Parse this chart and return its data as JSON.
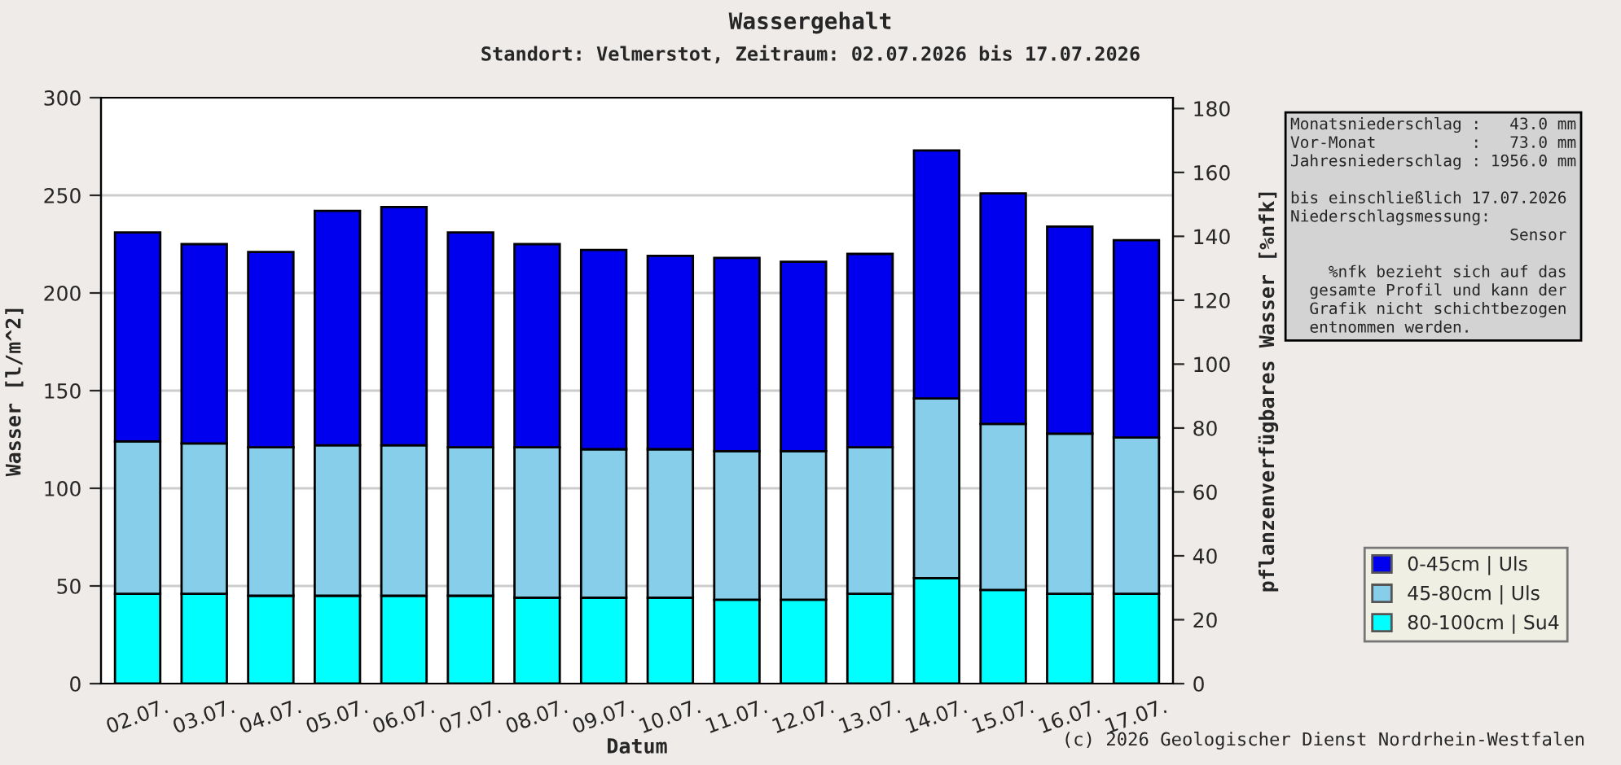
{
  "chart_data": {
    "type": "bar",
    "stacked": true,
    "title": "Wassergehalt",
    "subtitle": "Standort: Velmerstot, Zeitraum: 02.07.2026 bis 17.07.2026",
    "xlabel": "Datum",
    "ylabel": "Wasser [l/m^2]",
    "y2label": "pflanzenverfügbares Wasser [%nfk]",
    "categories": [
      "02.07.",
      "03.07.",
      "04.07.",
      "05.07.",
      "06.07.",
      "07.07.",
      "08.07.",
      "09.07.",
      "10.07.",
      "11.07.",
      "12.07.",
      "13.07.",
      "14.07.",
      "15.07.",
      "16.07.",
      "17.07."
    ],
    "series": [
      {
        "name": "80-100cm | Su4",
        "color": "#00ffff",
        "values": [
          46,
          46,
          45,
          45,
          45,
          45,
          44,
          44,
          44,
          43,
          43,
          46,
          54,
          48,
          46,
          46
        ]
      },
      {
        "name": "45-80cm | Uls",
        "color": "#87ceeb",
        "values": [
          78,
          77,
          76,
          77,
          77,
          76,
          77,
          76,
          76,
          76,
          76,
          75,
          92,
          85,
          82,
          80
        ]
      },
      {
        "name": "0-45cm | Uls",
        "color": "#0000ee",
        "values": [
          107,
          102,
          100,
          120,
          122,
          110,
          104,
          102,
          99,
          99,
          97,
          99,
          127,
          118,
          106,
          101
        ]
      }
    ],
    "ylim": [
      0,
      300
    ],
    "yticks": [
      0,
      50,
      100,
      150,
      200,
      250,
      300
    ],
    "y2lim": [
      0,
      183.4
    ],
    "y2ticks": [
      0,
      20,
      40,
      60,
      80,
      100,
      120,
      140,
      160,
      180
    ],
    "grid": "y",
    "legend": "bottom right",
    "annotations": [
      "Monatsniederschlag :   43.0 mm\nVor-Monat          :   73.0 mm\nJahresniederschlag : 1956.0 mm\n\nbis einschließlich 17.07.2026\nNiederschlagsmessung:\n                       Sensor\n\n    %nfk bezieht sich auf das\n  gesamte Profil und kann der\n  Grafik nicht schichtbezogen\n  entnommen werden.",
      "(c) 2026 Geologischer Dienst Nordrhein-Westfalen"
    ]
  }
}
